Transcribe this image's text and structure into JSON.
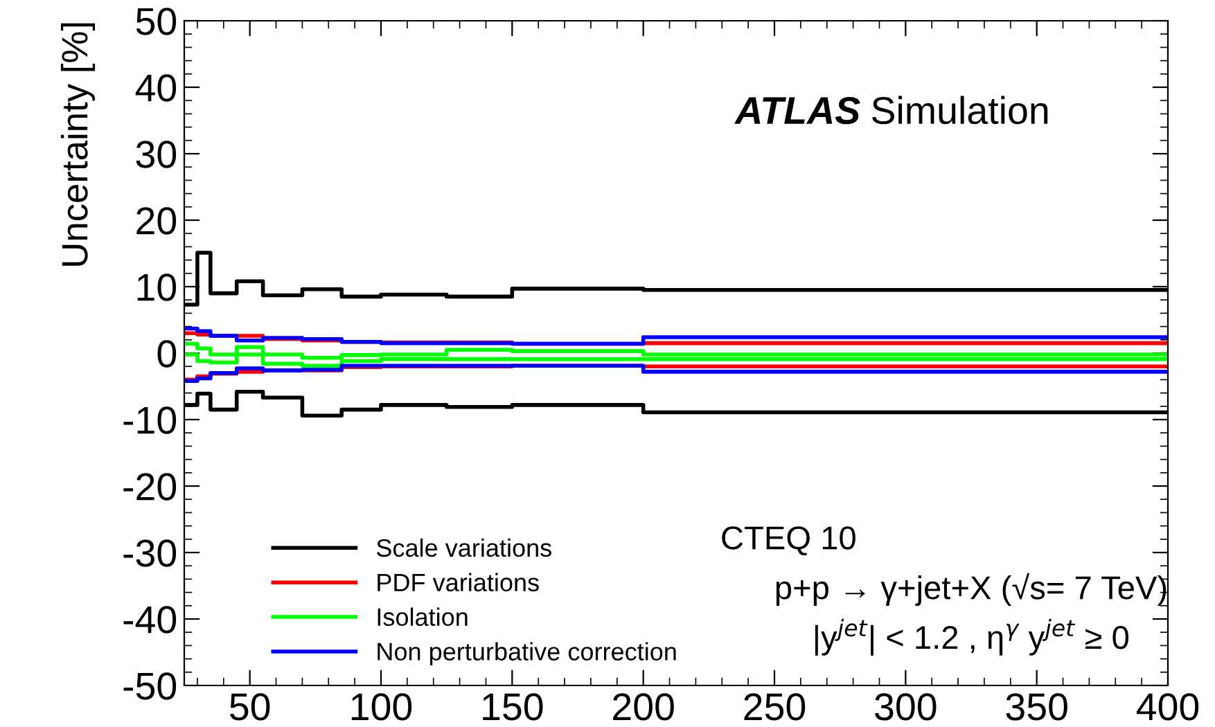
{
  "chart_data": {
    "type": "line",
    "ylabel": "Uncertainty [%]",
    "xlim": [
      25,
      400
    ],
    "xticks": [
      50,
      100,
      150,
      200,
      250,
      300,
      350,
      400
    ],
    "ylim": [
      -50,
      50
    ],
    "yticks": [
      -50,
      -40,
      -30,
      -20,
      -10,
      0,
      10,
      20,
      30,
      40,
      50
    ],
    "x": [
      25,
      30,
      30,
      35,
      35,
      45,
      45,
      55,
      55,
      70,
      70,
      85,
      85,
      100,
      100,
      125,
      125,
      150,
      150,
      200,
      200,
      400
    ],
    "series": [
      {
        "name": "Scale variations",
        "color": "#000000",
        "values": [
          7.3,
          7.3,
          15.1,
          15.1,
          9.0,
          9.0,
          10.8,
          10.8,
          8.7,
          8.7,
          9.6,
          9.6,
          8.5,
          8.5,
          8.8,
          8.8,
          8.5,
          8.5,
          9.7,
          9.7,
          9.5,
          9.5
        ]
      },
      {
        "name": "PDF variations",
        "color": "#ff0000",
        "values": [
          3.0,
          3.0,
          2.8,
          2.8,
          2.6,
          2.6,
          2.6,
          2.6,
          2.1,
          2.1,
          1.9,
          1.9,
          1.7,
          1.7,
          1.6,
          1.6,
          1.6,
          1.6,
          1.4,
          1.4,
          1.5,
          1.5
        ]
      },
      {
        "name": "Isolation",
        "color": "#00ff00",
        "values": [
          1.4,
          1.4,
          0.7,
          0.7,
          -0.2,
          -0.2,
          0.9,
          0.9,
          -0.2,
          -0.2,
          -0.7,
          -0.7,
          -0.3,
          -0.3,
          -0.2,
          -0.2,
          0.5,
          0.5,
          0.3,
          0.3,
          -0.2,
          -0.2
        ]
      },
      {
        "name": "Non perturbative correction",
        "color": "#0000ff",
        "values": [
          3.7,
          3.7,
          3.3,
          3.3,
          2.6,
          2.6,
          1.9,
          1.9,
          2.3,
          2.3,
          2.1,
          2.1,
          1.7,
          1.7,
          1.5,
          1.5,
          1.5,
          1.5,
          1.4,
          1.4,
          2.4,
          2.4
        ]
      },
      {
        "color": "#000000",
        "values": [
          -7.8,
          -7.8,
          -6.1,
          -6.1,
          -8.5,
          -8.5,
          -5.8,
          -5.8,
          -6.7,
          -6.7,
          -9.4,
          -9.4,
          -8.5,
          -8.5,
          -7.8,
          -7.8,
          -8.1,
          -8.1,
          -7.8,
          -7.8,
          -8.9,
          -8.9
        ]
      },
      {
        "color": "#ff0000",
        "values": [
          -4.0,
          -4.0,
          -3.5,
          -3.5,
          -3.1,
          -3.1,
          -2.8,
          -2.8,
          -2.6,
          -2.6,
          -2.6,
          -2.6,
          -2.1,
          -2.1,
          -2.0,
          -2.0,
          -2.0,
          -2.0,
          -1.9,
          -1.9,
          -2.0,
          -2.0
        ]
      },
      {
        "color": "#00ff00",
        "values": [
          -0.2,
          -0.2,
          -1.2,
          -1.2,
          -1.4,
          -1.4,
          -0.2,
          -0.2,
          -1.6,
          -1.6,
          -1.9,
          -1.9,
          -1.2,
          -1.2,
          -0.9,
          -0.9,
          -0.9,
          -0.9,
          -0.9,
          -0.9,
          -0.9,
          -0.9
        ]
      },
      {
        "color": "#0000ff",
        "values": [
          -4.2,
          -4.2,
          -3.8,
          -3.8,
          -3.0,
          -3.0,
          -2.3,
          -2.3,
          -2.6,
          -2.6,
          -2.5,
          -2.5,
          -1.9,
          -1.9,
          -1.9,
          -1.9,
          -1.9,
          -1.9,
          -1.9,
          -1.9,
          -2.8,
          -2.8
        ]
      }
    ],
    "legend": "bottom left",
    "grid": false,
    "annotations": [
      "ATLAS",
      "Simulation",
      "CTEQ 10",
      "p+p → γ+jet+X (√s= 7 TeV)",
      "|y$^{jet}$| < 1.2 , η$^{γ}$ y$^{jet}$ ≥ 0"
    ]
  }
}
